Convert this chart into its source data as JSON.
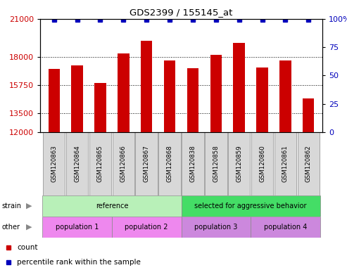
{
  "title": "GDS2399 / 155145_at",
  "samples": [
    "GSM120863",
    "GSM120864",
    "GSM120865",
    "GSM120866",
    "GSM120867",
    "GSM120868",
    "GSM120838",
    "GSM120858",
    "GSM120859",
    "GSM120860",
    "GSM120861",
    "GSM120862"
  ],
  "counts": [
    17050,
    17280,
    15900,
    18250,
    19280,
    17720,
    17060,
    18150,
    19080,
    17120,
    17720,
    14680
  ],
  "percentile_ranks": [
    99,
    99,
    99,
    99,
    99,
    99,
    99,
    99,
    99,
    99,
    99,
    99
  ],
  "ymin": 12000,
  "ymax": 21000,
  "yticks_left": [
    12000,
    13500,
    15750,
    18000,
    21000
  ],
  "ytick_labels_left": [
    "12000",
    "13500",
    "15750",
    "18000",
    "21000"
  ],
  "yticks_right_pct": [
    0,
    25,
    50,
    75,
    100
  ],
  "ytick_labels_right": [
    "0",
    "25",
    "50",
    "75",
    "100%"
  ],
  "bar_color": "#cc0000",
  "dot_color": "#0000bb",
  "strain_groups": [
    {
      "label": "reference",
      "start": 0,
      "end": 6,
      "color": "#b8f0b8"
    },
    {
      "label": "selected for aggressive behavior",
      "start": 6,
      "end": 12,
      "color": "#44dd66"
    }
  ],
  "other_groups": [
    {
      "label": "population 1",
      "start": 0,
      "end": 3,
      "color": "#ee88ee"
    },
    {
      "label": "population 2",
      "start": 3,
      "end": 6,
      "color": "#ee88ee"
    },
    {
      "label": "population 3",
      "start": 6,
      "end": 9,
      "color": "#cc88dd"
    },
    {
      "label": "population 4",
      "start": 9,
      "end": 12,
      "color": "#cc88dd"
    }
  ],
  "left_tick_color": "#cc0000",
  "right_tick_color": "#0000bb",
  "fig_width": 4.93,
  "fig_height": 3.84,
  "fig_dpi": 100
}
